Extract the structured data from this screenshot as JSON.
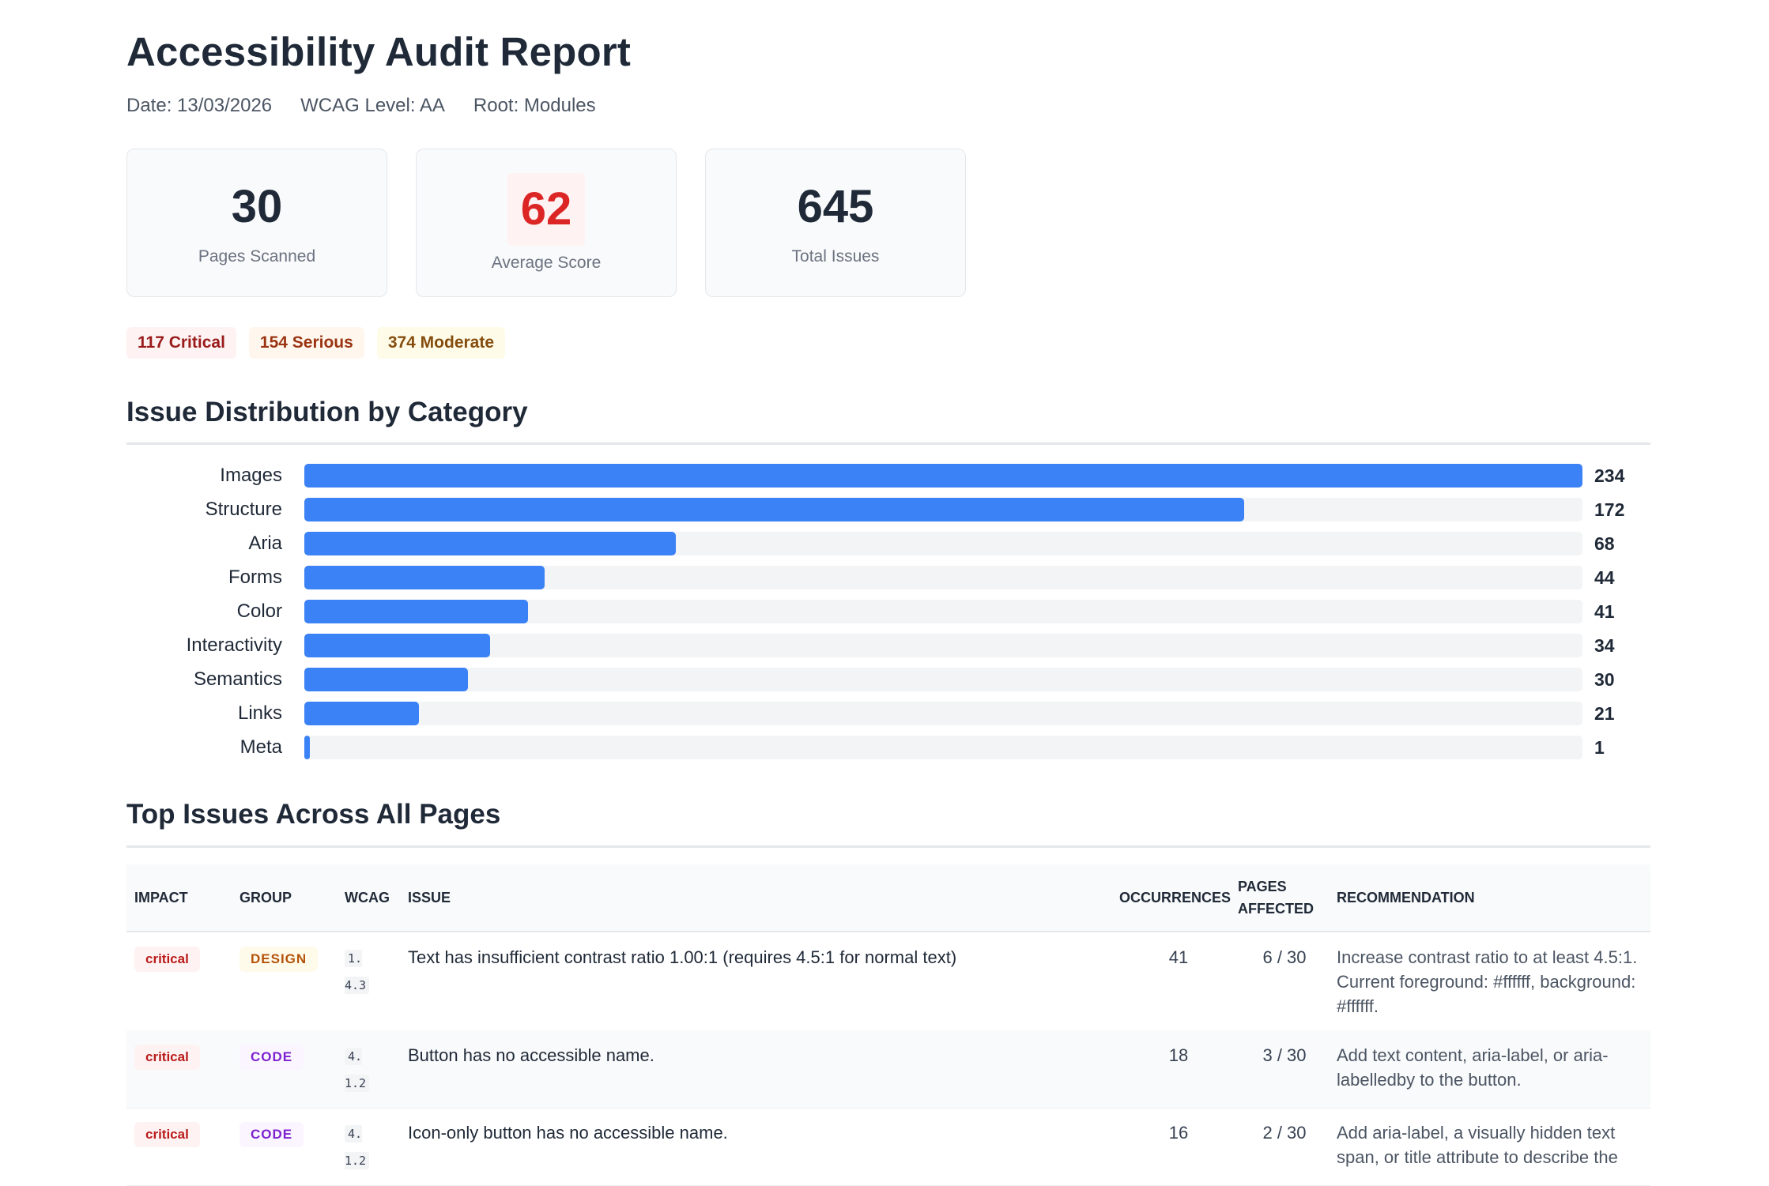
{
  "report": {
    "title": "Accessibility Audit Report",
    "date": "Date: 13/03/2026",
    "wcag_level": "WCAG Level: AA",
    "root": "Root: Modules"
  },
  "summary": {
    "pages_scanned": {
      "value": "30",
      "label": "Pages Scanned"
    },
    "average_score": {
      "value": "62",
      "label": "Average Score"
    },
    "total_issues": {
      "value": "645",
      "label": "Total Issues"
    }
  },
  "severity": {
    "critical": "117 Critical",
    "serious": "154 Serious",
    "moderate": "374 Moderate"
  },
  "colors": {
    "bar": "#3b82f6",
    "track": "#f3f4f6",
    "score": "#dc2626",
    "critical": "#991b1b",
    "serious": "#9a3412",
    "moderate": "#854d0e"
  },
  "sections": {
    "distribution_title": "Issue Distribution by Category",
    "top_issues_title": "Top Issues Across All Pages"
  },
  "chart_data": {
    "type": "bar",
    "orientation": "horizontal",
    "title": "Issue Distribution by Category",
    "categories": [
      "Images",
      "Structure",
      "Aria",
      "Forms",
      "Color",
      "Interactivity",
      "Semantics",
      "Links",
      "Meta"
    ],
    "values": [
      234,
      172,
      68,
      44,
      41,
      34,
      30,
      21,
      1
    ],
    "xlim": [
      0,
      234
    ],
    "grid": false,
    "legend": "none"
  },
  "table": {
    "headers": {
      "impact": "IMPACT",
      "group": "GROUP",
      "wcag": "WCAG",
      "issue": "ISSUE",
      "occurrences": "OCCURRENCES",
      "pages_affected_1": "PAGES",
      "pages_affected_2": "AFFECTED",
      "recommendation": "RECOMMENDATION"
    },
    "rows": [
      {
        "impact": "critical",
        "group": "DESIGN",
        "wcag": "1.4.3",
        "issue": "Text has insufficient contrast ratio 1.00:1 (requires 4.5:1 for normal text)",
        "occurrences": "41",
        "pages": "6 / 30",
        "recommendation": "Increase contrast ratio to at least 4.5:1. Current foreground: #ffffff, background: #ffffff."
      },
      {
        "impact": "critical",
        "group": "CODE",
        "wcag": "4.1.2",
        "issue": "Button has no accessible name.",
        "occurrences": "18",
        "pages": "3 / 30",
        "recommendation": "Add text content, aria-label, or aria-labelledby to the button."
      },
      {
        "impact": "critical",
        "group": "CODE",
        "wcag": "4.1.2",
        "issue": "Icon-only button has no accessible name.",
        "occurrences": "16",
        "pages": "2 / 30",
        "recommendation": "Add aria-label, a visually hidden text span, or title attribute to describe the"
      }
    ]
  }
}
